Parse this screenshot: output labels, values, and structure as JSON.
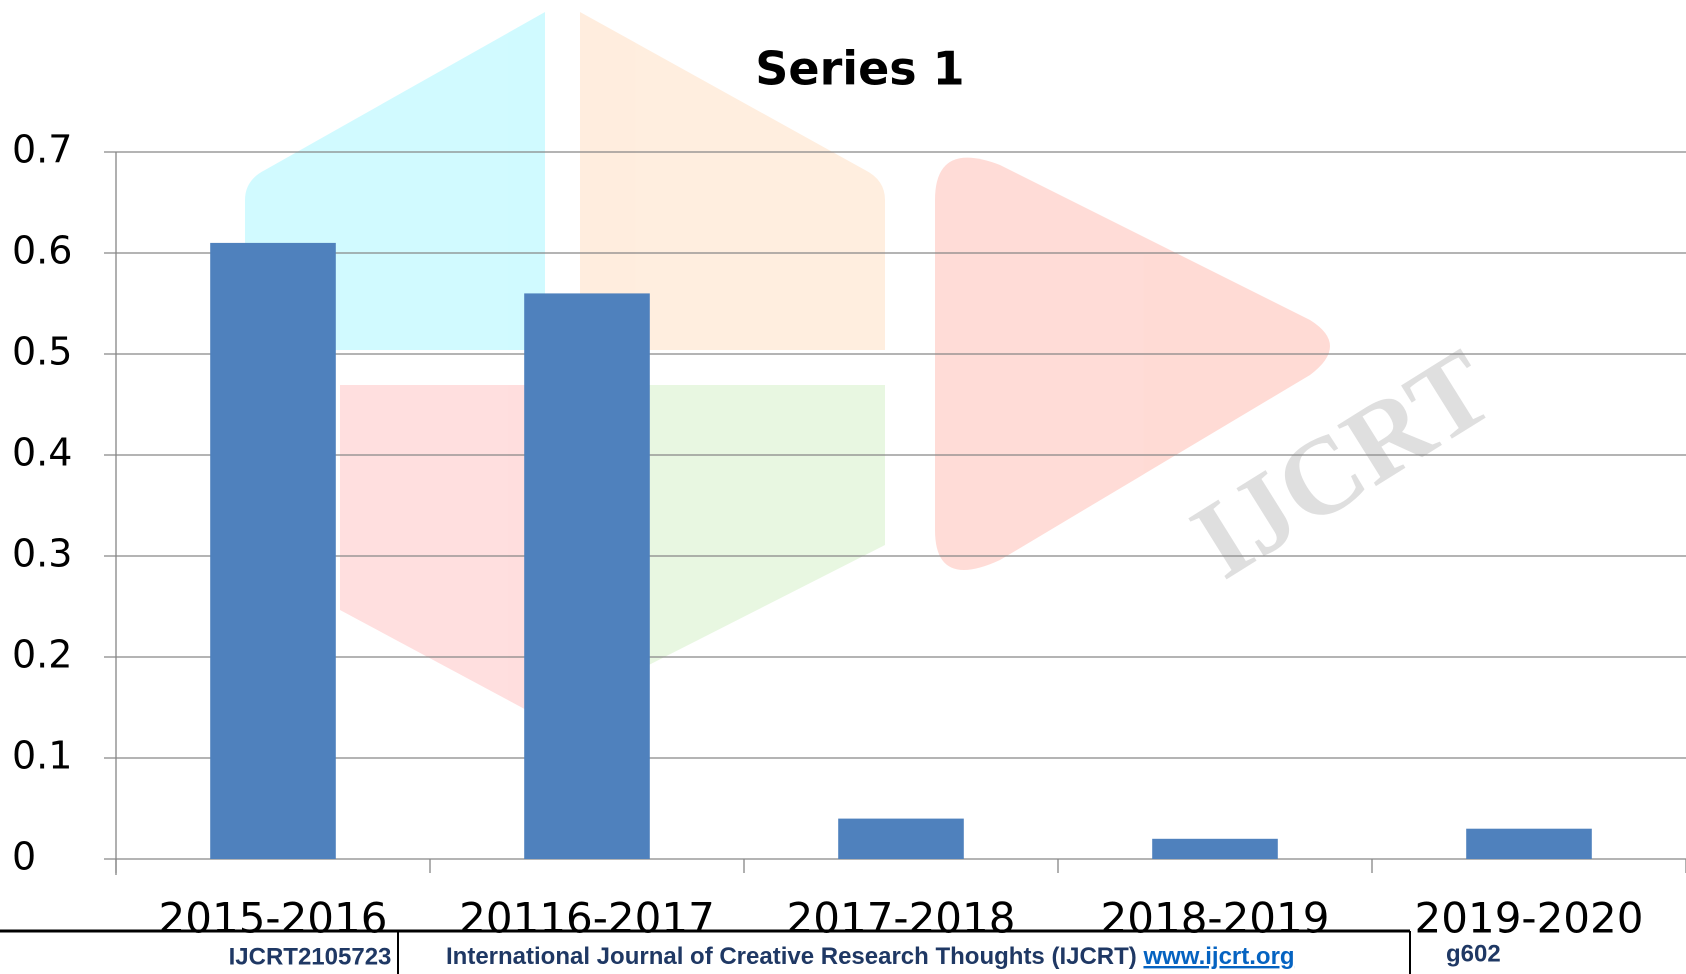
{
  "chart_data": {
    "type": "bar",
    "title": "Series 1",
    "categories": [
      "2015-2016",
      "20116-2017",
      "2017-2018",
      "2018-2019",
      "2019-2020"
    ],
    "values": [
      0.61,
      0.56,
      0.04,
      0.02,
      0.03
    ],
    "color": "#4f81bd",
    "ylim": [
      0,
      0.7
    ],
    "yticks": [
      0,
      0.1,
      0.2,
      0.3,
      0.4,
      0.5,
      0.6,
      0.7
    ],
    "grid": true
  },
  "footer": {
    "id": "IJCRT2105723",
    "journal": "International Journal of Creative Research Thoughts (IJCRT)",
    "url": "www.ijcrt.org",
    "page": "g602"
  }
}
